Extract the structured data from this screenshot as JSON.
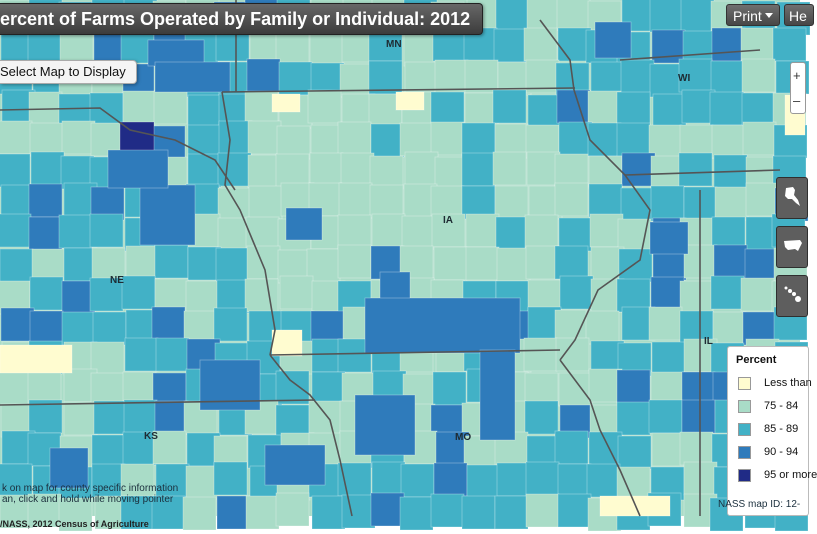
{
  "header": {
    "title": "ercent of Farms Operated by Family or Individual: 2012",
    "select_map_label": "Select Map to Display",
    "print_label": "Print",
    "help_label": "He"
  },
  "zoom": {
    "in_symbol": "+",
    "out_symbol": "–"
  },
  "nav_icons": [
    "alaska-icon",
    "us-map-icon",
    "hawaii-icon"
  ],
  "state_labels": {
    "mn": "MN",
    "wi": "WI",
    "ia": "IA",
    "ne": "NE",
    "il": "IL",
    "mo": "MO",
    "ks": "KS"
  },
  "legend": {
    "title": "Percent",
    "items": [
      {
        "label": "Less than",
        "color": "#fffcd0"
      },
      {
        "label": "75 - 84",
        "color": "#a9dcc7"
      },
      {
        "label": "85 - 89",
        "color": "#42b1c6"
      },
      {
        "label": "90 - 94",
        "color": "#2f7bbb"
      },
      {
        "label": "95 or more",
        "color": "#202b86"
      }
    ]
  },
  "instructions": {
    "line1": "k on map for county specific information",
    "line2": "an, click and hold while moving pointer"
  },
  "map_id": "NASS map ID: 12-",
  "source": "/NASS, 2012 Census of Agriculture",
  "colors": {
    "c1": "#fffcd0",
    "c2": "#a9dcc7",
    "c3": "#42b1c6",
    "c4": "#2f7bbb",
    "c5": "#202b86"
  }
}
